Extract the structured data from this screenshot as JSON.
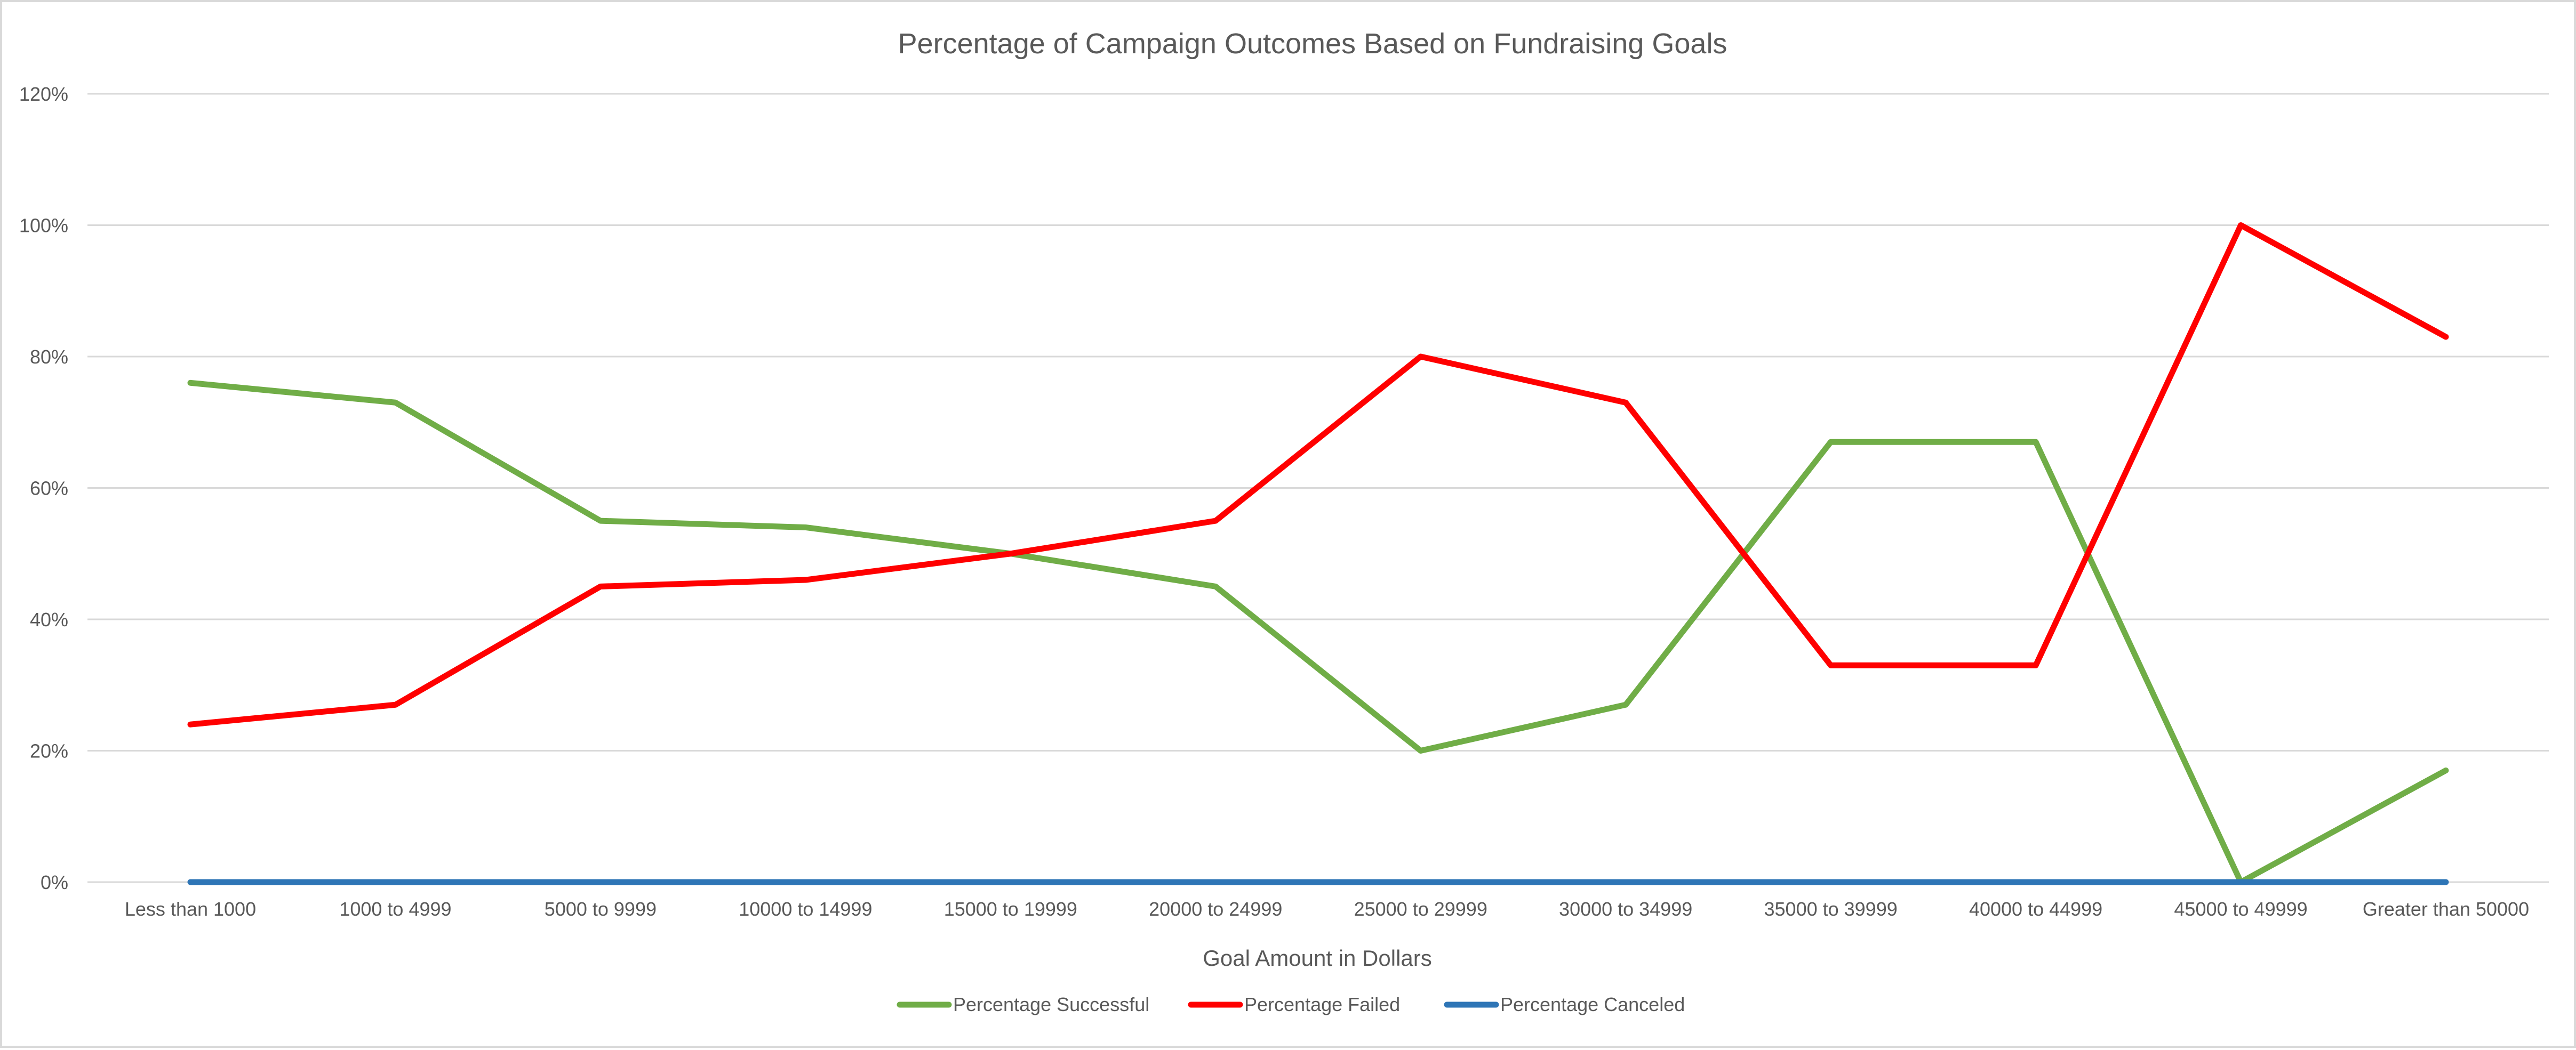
{
  "chart_data": {
    "type": "line",
    "title": "Percentage of Campaign Outcomes Based on Fundraising Goals",
    "xlabel": "Goal Amount in Dollars",
    "ylabel": "",
    "ylim": [
      0,
      120
    ],
    "yticks": [
      "0%",
      "20%",
      "40%",
      "60%",
      "80%",
      "100%",
      "120%"
    ],
    "yticks_values": [
      0,
      20,
      40,
      60,
      80,
      100,
      120
    ],
    "grid": true,
    "legend_position": "bottom",
    "categories": [
      "Less than 1000",
      "1000 to 4999",
      "5000 to 9999",
      "10000 to 14999",
      "15000 to 19999",
      "20000 to 24999",
      "25000 to 29999",
      "30000 to 34999",
      "35000 to 39999",
      "40000 to 44999",
      "45000 to 49999",
      "Greater than 50000"
    ],
    "series": [
      {
        "name": "Percentage Successful",
        "color": "#70ad47",
        "values": [
          76,
          73,
          55,
          54,
          50,
          45,
          20,
          27,
          67,
          67,
          0,
          17
        ]
      },
      {
        "name": "Percentage Failed",
        "color": "#ff0000",
        "values": [
          24,
          27,
          45,
          46,
          50,
          55,
          80,
          73,
          33,
          33,
          100,
          83
        ]
      },
      {
        "name": "Percentage Canceled",
        "color": "#2e75b6",
        "values": [
          0,
          0,
          0,
          0,
          0,
          0,
          0,
          0,
          0,
          0,
          0,
          0
        ]
      }
    ]
  }
}
